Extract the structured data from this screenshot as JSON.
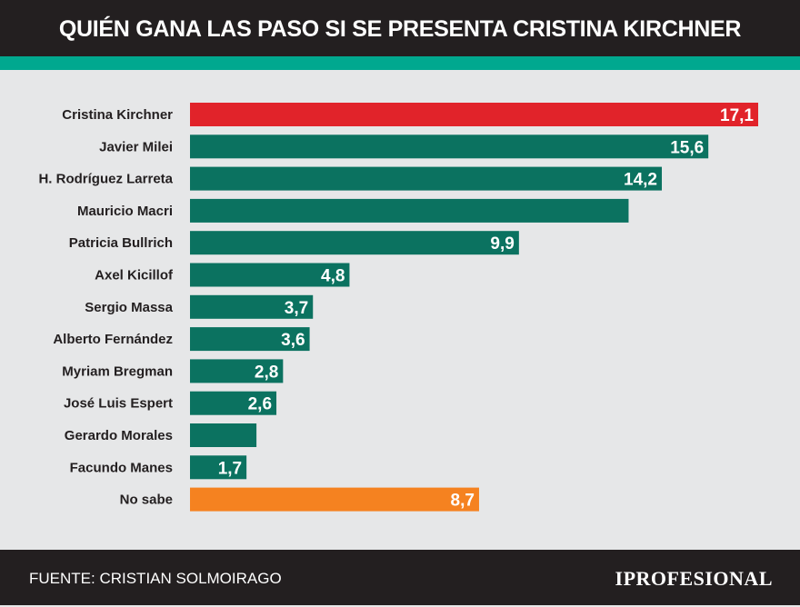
{
  "header": {
    "title": "QUIÉN GANA LAS PASO SI SE PRESENTA CRISTINA KIRCHNER"
  },
  "footer": {
    "source": "FUENTE: CRISTIAN SOLMOIRAGO",
    "brand": "IPROFESIONAL"
  },
  "colors": {
    "highlight": "#e1232a",
    "default": "#0b7260",
    "undecided": "#f58220",
    "stripe": "#00a88f",
    "header_bg": "#231f20"
  },
  "chart_data": {
    "type": "bar",
    "orientation": "horizontal",
    "categories": [
      "Cristina Kirchner",
      "Javier Milei",
      "H. Rodríguez Larreta",
      "Mauricio Macri",
      "Patricia Bullrich",
      "Axel Kicillof",
      "Sergio Massa",
      "Alberto Fernández",
      "Myriam Bregman",
      "José Luis Espert",
      "Gerardo Morales",
      "Facundo Manes",
      "No sabe"
    ],
    "values": [
      17.1,
      15.6,
      14.2,
      13.2,
      9.9,
      4.8,
      3.7,
      3.6,
      2.8,
      2.6,
      2.0,
      1.7,
      8.7
    ],
    "labels": [
      "17,1",
      "15,6",
      "14,2",
      "",
      "9,9",
      "4,8",
      "3,7",
      "3,6",
      "2,8",
      "2,6",
      "",
      "1,7",
      "8,7"
    ],
    "bar_colors": [
      "#e1232a",
      "#0b7260",
      "#0b7260",
      "#0b7260",
      "#0b7260",
      "#0b7260",
      "#0b7260",
      "#0b7260",
      "#0b7260",
      "#0b7260",
      "#0b7260",
      "#0b7260",
      "#f58220"
    ],
    "xlim": [
      0,
      17.1
    ],
    "grid": false,
    "title": "QUIÉN GANA LAS PASO SI SE PRESENTA CRISTINA KIRCHNER"
  }
}
